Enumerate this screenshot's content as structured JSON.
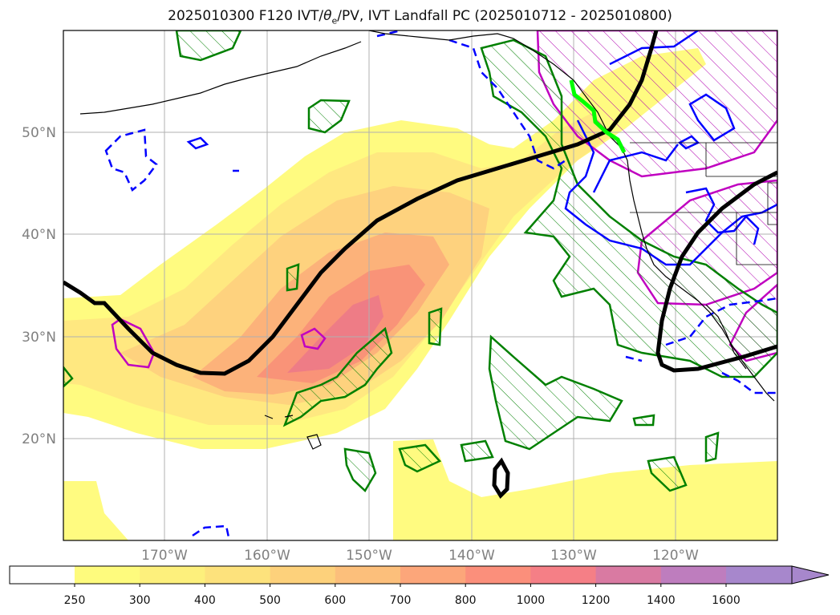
{
  "title": {
    "prefix": "2025010300 F120 IVT/",
    "theta": "θ",
    "theta_sub": "e",
    "suffix": "/PV, IVT Landfall PC (2025010712 - 2025010800)"
  },
  "axes": {
    "lat_labels": [
      "50°N",
      "40°N",
      "30°N",
      "20°N"
    ],
    "lon_labels": [
      "170°W",
      "160°W",
      "150°W",
      "140°W",
      "130°W",
      "120°W"
    ]
  },
  "colorbar": {
    "levels": [
      "250",
      "300",
      "400",
      "500",
      "600",
      "700",
      "800",
      "1000",
      "1200",
      "1400",
      "1600"
    ],
    "colors": [
      "#ffffff",
      "#fefb7d",
      "#fdf07c",
      "#fde27c",
      "#fdd17b",
      "#fcbf7b",
      "#fca67a",
      "#fb8f7b",
      "#f57f86",
      "#d97aa2",
      "#be7dbe",
      "#a787cc"
    ]
  },
  "contour_colors": {
    "ivt_fill": [
      "#fffb80",
      "#ffe880",
      "#fed27e",
      "#fcb27a",
      "#f99378",
      "#ee7c86"
    ],
    "high_pv": "#000000",
    "green": "#008000",
    "magenta": "#c000c0",
    "blue": "#0000ff",
    "landfall": "#00ff00"
  }
}
